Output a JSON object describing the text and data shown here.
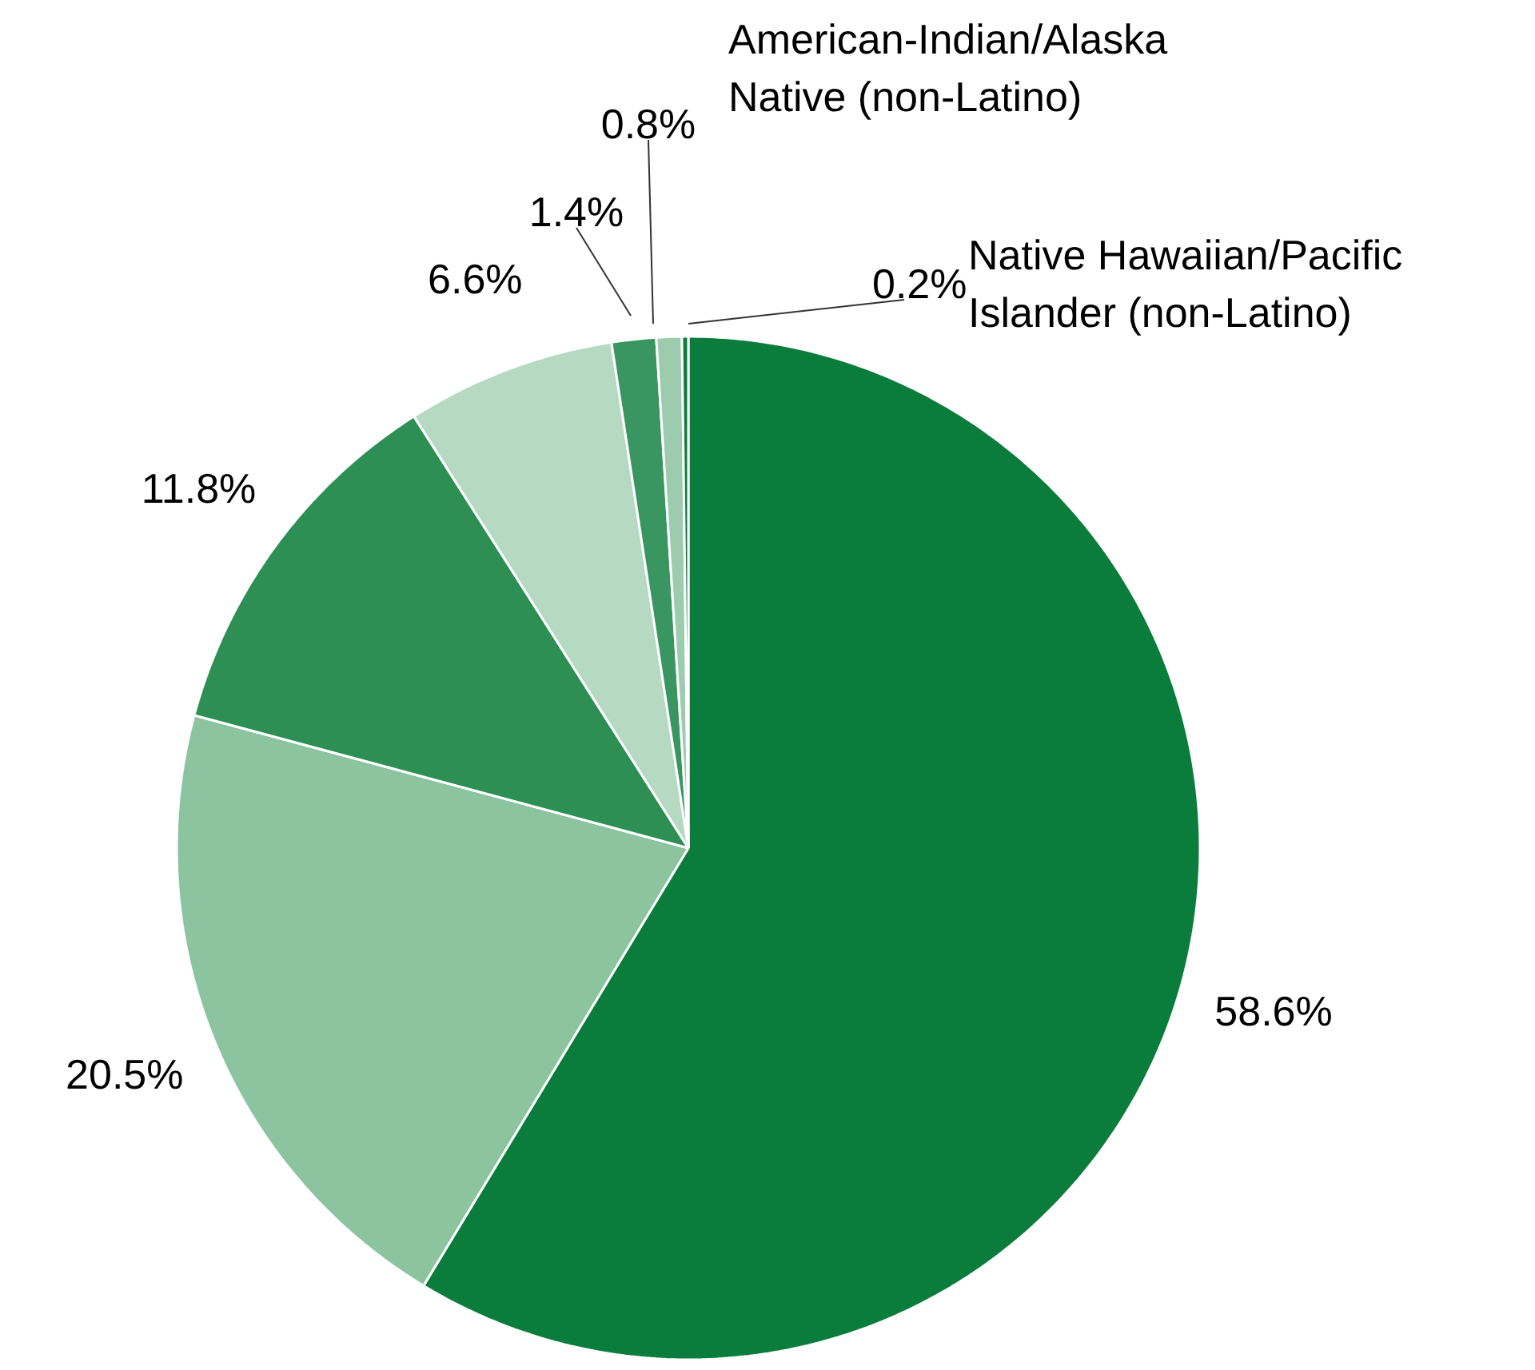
{
  "chart_data": {
    "type": "pie",
    "categories": [
      null,
      null,
      null,
      null,
      null,
      "American-Indian/Alaska Native (non-Latino)",
      "Native Hawaiian/Pacific Islander (non-Latino)"
    ],
    "values": [
      58.6,
      20.5,
      11.8,
      6.6,
      1.4,
      0.8,
      0.2
    ],
    "value_labels": [
      "58.6%",
      "20.5%",
      "11.8%",
      "6.6%",
      "1.4%",
      "0.8%",
      "0.2%"
    ],
    "colors": [
      "#0a7d3c",
      "#8cc4a0",
      "#2e8f55",
      "#b5d9c1",
      "#3a9660",
      "#9ccbae",
      "#0a7d3c"
    ]
  }
}
